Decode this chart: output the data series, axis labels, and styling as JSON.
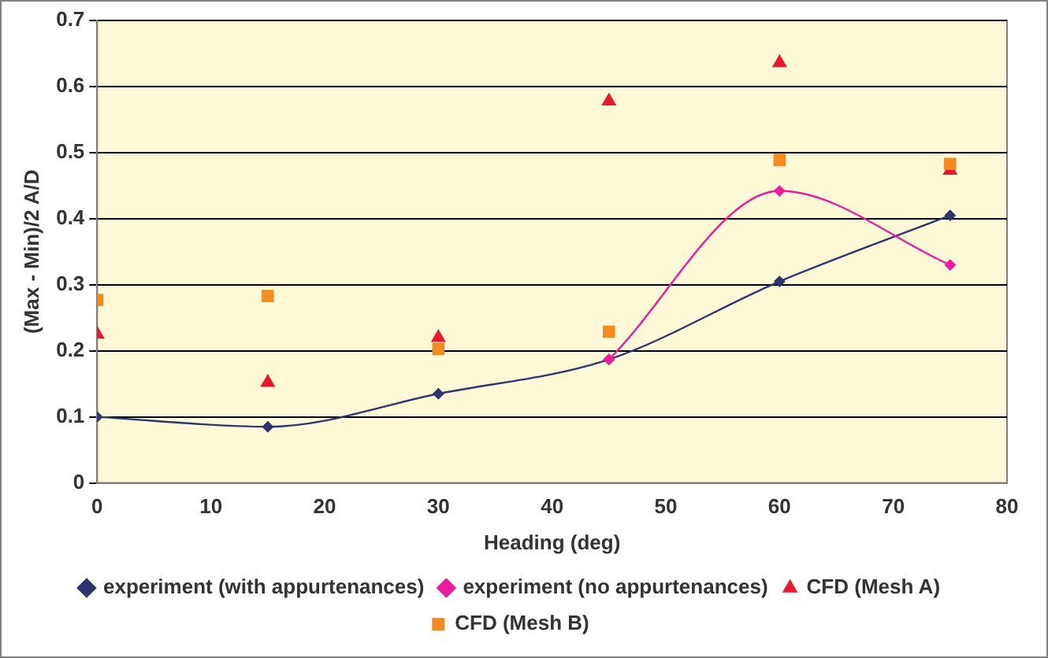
{
  "chart_data": {
    "type": "line",
    "xlabel": "Heading (deg)",
    "ylabel": "(Max - Min)/2 A/D",
    "xlim": [
      0,
      80
    ],
    "xticks": [
      0,
      10,
      20,
      30,
      40,
      50,
      60,
      70,
      80
    ],
    "ylim": [
      0,
      0.7
    ],
    "yticks": [
      0,
      0.1,
      0.2,
      0.3,
      0.4,
      0.5,
      0.6,
      0.7
    ],
    "grid": "y",
    "legend": "bottom",
    "series": [
      {
        "name": "experiment (with appurtenances)",
        "type": "line",
        "marker": "diamond",
        "color": "#2e3470",
        "x": [
          0,
          15,
          30,
          45,
          60,
          75
        ],
        "values": [
          0.1,
          0.085,
          0.135,
          0.187,
          0.305,
          0.405
        ]
      },
      {
        "name": "experiment (no appurtenances)",
        "type": "line",
        "marker": "diamond",
        "color": "#ee1a9c",
        "x": [
          45,
          60,
          75
        ],
        "values": [
          0.187,
          0.442,
          0.33
        ]
      },
      {
        "name": "CFD (Mesh A)",
        "type": "scatter",
        "marker": "triangle",
        "color": "#e8192c",
        "x": [
          0,
          15,
          30,
          45,
          60,
          75
        ],
        "values": [
          0.225,
          0.152,
          0.22,
          0.578,
          0.636,
          0.473
        ]
      },
      {
        "name": "CFD (Mesh B)",
        "type": "scatter",
        "marker": "square",
        "color": "#f58a1f",
        "x": [
          0,
          15,
          30,
          45,
          60,
          75
        ],
        "values": [
          0.277,
          0.283,
          0.203,
          0.229,
          0.489,
          0.483
        ]
      }
    ]
  }
}
